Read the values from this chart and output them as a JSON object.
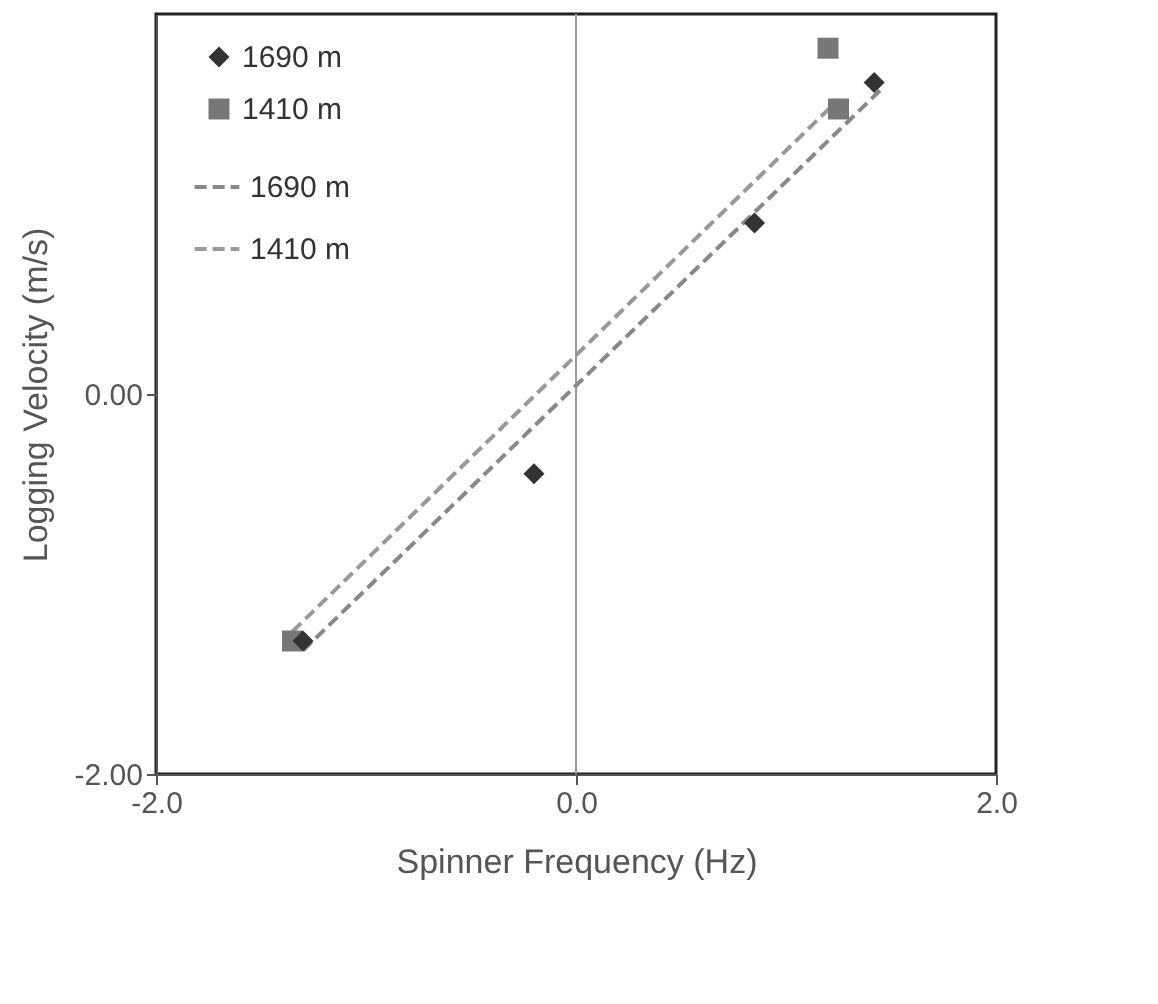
{
  "chart_data": {
    "type": "scatter",
    "xlabel": "Spinner Frequency (Hz)",
    "ylabel": "Logging Velocity (m/s)",
    "xlim": [
      -2,
      2
    ],
    "ylim": [
      -2,
      2
    ],
    "xticks": [
      {
        "value": -2,
        "label": "-2.0"
      },
      {
        "value": 0,
        "label": "0.0"
      },
      {
        "value": 2,
        "label": "2.0"
      }
    ],
    "yticks": [
      {
        "value": -2,
        "label": "-2.00"
      },
      {
        "value": 0,
        "label": "0.00"
      }
    ],
    "legend": "top left",
    "grid": false,
    "ref_lines": [
      {
        "axis": "x",
        "value": 0,
        "color": "#999999"
      }
    ],
    "series": [
      {
        "name": "1690 m",
        "type": "scatter",
        "marker": "diamond",
        "color": "#333333",
        "x": [
          -1.3,
          -0.2,
          0.85,
          1.42
        ],
        "values": [
          -1.3,
          -0.42,
          0.9,
          1.64
        ]
      },
      {
        "name": "1410 m",
        "type": "scatter",
        "marker": "square",
        "color": "#777777",
        "x": [
          -1.35,
          1.25,
          1.2
        ],
        "values": [
          -1.3,
          1.5,
          1.82
        ]
      },
      {
        "name": "1690 m",
        "type": "line",
        "line_style": "dashed",
        "color": "#888888",
        "x": [
          -1.3,
          1.45
        ],
        "values": [
          -1.35,
          1.6
        ]
      },
      {
        "name": "1410 m",
        "type": "line",
        "line_style": "dashed",
        "color": "#999999",
        "x": [
          -1.35,
          1.25
        ],
        "values": [
          -1.25,
          1.55
        ]
      }
    ]
  }
}
